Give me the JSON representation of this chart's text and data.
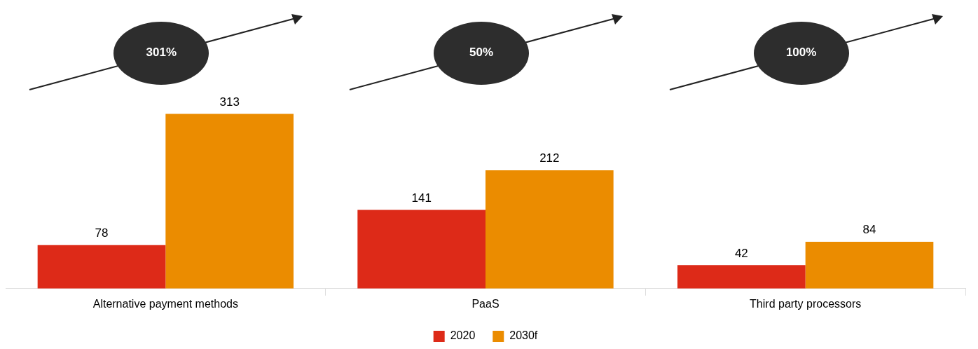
{
  "chart_data": {
    "type": "bar",
    "categories": [
      "Alternative payment methods",
      "PaaS",
      "Third party processors"
    ],
    "series": [
      {
        "name": "2020",
        "color": "#dd2a18",
        "values": [
          78,
          141,
          42
        ]
      },
      {
        "name": "2030f",
        "color": "#eb8c00",
        "values": [
          313,
          212,
          84
        ]
      }
    ],
    "annotations": [
      "301%",
      "50%",
      "100%"
    ],
    "data_labels": true,
    "legend": "bottom",
    "tick_labels": "x"
  }
}
